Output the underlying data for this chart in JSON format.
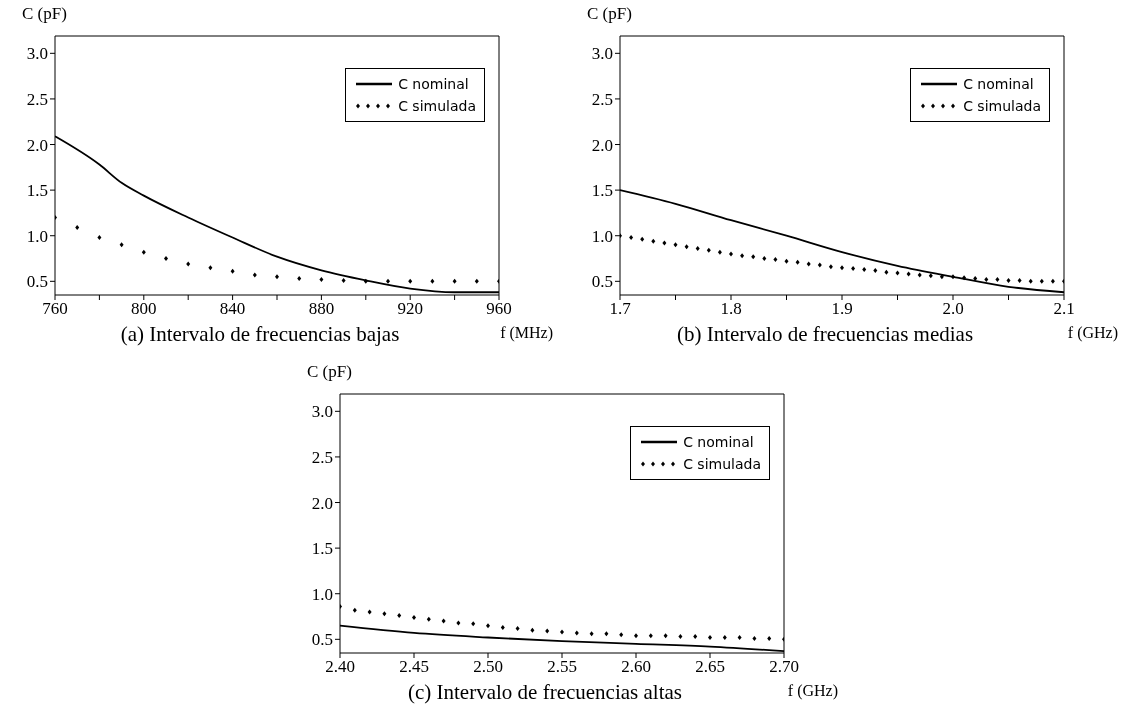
{
  "chart_data": [
    {
      "type": "line",
      "title": "(a) Intervalo de frecuencias bajas",
      "xlabel": "f (MHz)",
      "ylabel": "C (pF)",
      "legend": "top right",
      "grid": false,
      "xlim": [
        760,
        960
      ],
      "xticks": [
        760,
        {
          "value": 780,
          "label": null
        },
        800,
        {
          "value": 820,
          "label": null
        },
        840,
        {
          "value": 860,
          "label": null
        },
        880,
        {
          "value": 900,
          "label": null
        },
        920,
        {
          "value": 940,
          "label": null
        },
        960
      ],
      "ylim": [
        0.35,
        3.19
      ],
      "yticks": [
        0.5,
        {
          "value": 1,
          "label": "1.0"
        },
        1.5,
        {
          "value": 2,
          "label": "2.0"
        },
        2.5,
        {
          "value": 3,
          "label": "3.0"
        }
      ],
      "series": [
        {
          "name": "C nominal",
          "color": "#000000",
          "line_style": "solid",
          "marker": "none",
          "x": [
            760,
            780,
            790,
            800,
            820,
            840,
            860,
            880,
            900,
            920,
            940,
            960
          ],
          "values": [
            2.09,
            1.78,
            1.58,
            1.44,
            1.2,
            0.98,
            0.77,
            0.62,
            0.51,
            0.42,
            0.38,
            0.38
          ]
        },
        {
          "name": "C simulada",
          "type": "scatter",
          "color": "#000000",
          "marker": "diamond",
          "x": [
            760,
            770,
            780,
            790,
            800,
            810,
            820,
            830,
            840,
            850,
            860,
            870,
            880,
            890,
            900,
            910,
            920,
            930,
            940,
            950,
            960
          ],
          "values": [
            1.2,
            1.09,
            0.98,
            0.9,
            0.82,
            0.75,
            0.69,
            0.65,
            0.61,
            0.57,
            0.55,
            0.53,
            0.52,
            0.51,
            0.5,
            0.5,
            0.5,
            0.5,
            0.5,
            0.5,
            0.5
          ]
        }
      ]
    },
    {
      "type": "line",
      "title": "(b) Intervalo de frecuencias medias",
      "xlabel": "f (GHz)",
      "ylabel": "C (pF)",
      "legend": "top right",
      "grid": false,
      "xlim": [
        1.7,
        2.1
      ],
      "xticks": [
        1.7,
        {
          "value": 1.75,
          "label": null
        },
        1.8,
        {
          "value": 1.85,
          "label": null
        },
        1.9,
        {
          "value": 1.95,
          "label": null
        },
        {
          "value": 2,
          "label": "2.0"
        },
        {
          "value": 2.05,
          "label": null
        },
        2.1
      ],
      "ylim": [
        0.35,
        3.19
      ],
      "yticks": [
        0.5,
        {
          "value": 1,
          "label": "1.0"
        },
        1.5,
        {
          "value": 2,
          "label": "2.0"
        },
        2.5,
        {
          "value": 3,
          "label": "3.0"
        }
      ],
      "series": [
        {
          "name": "C nominal",
          "color": "#000000",
          "line_style": "solid",
          "marker": "none",
          "x": [
            1.7,
            1.75,
            1.8,
            1.85,
            1.9,
            1.95,
            2.0,
            2.05,
            2.1
          ],
          "values": [
            1.5,
            1.35,
            1.17,
            1.0,
            0.82,
            0.67,
            0.55,
            0.44,
            0.38
          ]
        },
        {
          "name": "C simulada",
          "type": "scatter",
          "color": "#000000",
          "marker": "diamond",
          "x": [
            1.7,
            1.71,
            1.72,
            1.73,
            1.74,
            1.75,
            1.76,
            1.77,
            1.78,
            1.79,
            1.8,
            1.81,
            1.82,
            1.83,
            1.84,
            1.85,
            1.86,
            1.87,
            1.88,
            1.89,
            1.9,
            1.91,
            1.92,
            1.93,
            1.94,
            1.95,
            1.96,
            1.97,
            1.98,
            1.99,
            2.0,
            2.01,
            2.02,
            2.03,
            2.04,
            2.05,
            2.06,
            2.07,
            2.08,
            2.09,
            2.1
          ],
          "values": [
            1.0,
            0.98,
            0.96,
            0.94,
            0.92,
            0.9,
            0.88,
            0.86,
            0.84,
            0.82,
            0.8,
            0.78,
            0.77,
            0.75,
            0.74,
            0.72,
            0.71,
            0.69,
            0.68,
            0.66,
            0.65,
            0.64,
            0.63,
            0.62,
            0.6,
            0.59,
            0.58,
            0.57,
            0.56,
            0.55,
            0.55,
            0.54,
            0.53,
            0.52,
            0.52,
            0.51,
            0.51,
            0.5,
            0.5,
            0.5,
            0.5
          ]
        }
      ]
    },
    {
      "type": "line",
      "title": "(c) Intervalo de frecuencias altas",
      "xlabel": "f (GHz)",
      "ylabel": "C (pF)",
      "legend": "top right",
      "grid": false,
      "xlim": [
        2.4,
        2.7
      ],
      "xticks": [
        {
          "value": 2.4,
          "label": "2.40"
        },
        2.45,
        {
          "value": 2.5,
          "label": "2.50"
        },
        2.55,
        {
          "value": 2.6,
          "label": "2.60"
        },
        2.65,
        {
          "value": 2.7,
          "label": "2.70"
        }
      ],
      "ylim": [
        0.35,
        3.19
      ],
      "yticks": [
        0.5,
        {
          "value": 1,
          "label": "1.0"
        },
        1.5,
        {
          "value": 2,
          "label": "2.0"
        },
        2.5,
        {
          "value": 3,
          "label": "3.0"
        }
      ],
      "series": [
        {
          "name": "C nominal",
          "color": "#000000",
          "line_style": "solid",
          "marker": "none",
          "x": [
            2.4,
            2.45,
            2.5,
            2.55,
            2.6,
            2.65,
            2.7
          ],
          "values": [
            0.65,
            0.57,
            0.52,
            0.48,
            0.45,
            0.42,
            0.37
          ]
        },
        {
          "name": "C simulada",
          "type": "scatter",
          "color": "#000000",
          "marker": "diamond",
          "x": [
            2.4,
            2.41,
            2.42,
            2.43,
            2.44,
            2.45,
            2.46,
            2.47,
            2.48,
            2.49,
            2.5,
            2.51,
            2.52,
            2.53,
            2.54,
            2.55,
            2.56,
            2.57,
            2.58,
            2.59,
            2.6,
            2.61,
            2.62,
            2.63,
            2.64,
            2.65,
            2.66,
            2.67,
            2.68,
            2.69,
            2.7
          ],
          "values": [
            0.86,
            0.82,
            0.8,
            0.78,
            0.76,
            0.74,
            0.72,
            0.7,
            0.68,
            0.67,
            0.65,
            0.63,
            0.62,
            0.6,
            0.59,
            0.58,
            0.57,
            0.56,
            0.56,
            0.55,
            0.54,
            0.54,
            0.54,
            0.53,
            0.53,
            0.52,
            0.52,
            0.52,
            0.51,
            0.51,
            0.5
          ]
        }
      ]
    }
  ]
}
